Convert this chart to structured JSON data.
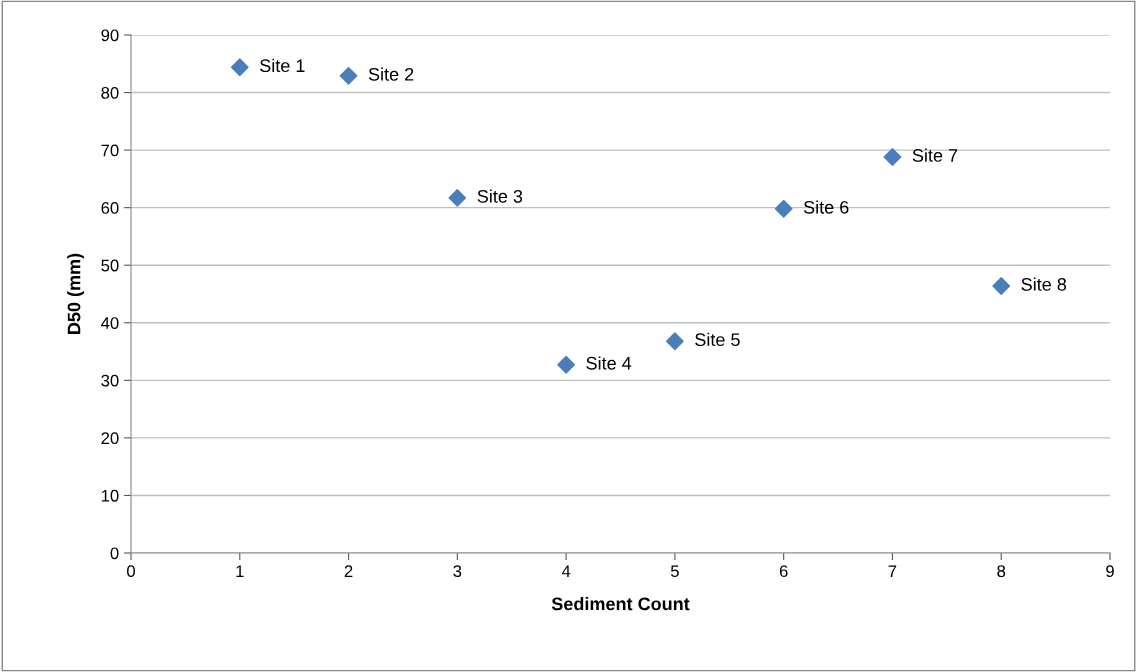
{
  "chart_data": {
    "type": "scatter",
    "xlabel": "Sediment Count",
    "ylabel": "D50 (mm)",
    "x": [
      1,
      2,
      3,
      4,
      5,
      6,
      7,
      8
    ],
    "series": [
      {
        "color": "#4a7ebb",
        "values": [
          84.4,
          82.9,
          61.7,
          32.7,
          36.8,
          59.8,
          68.8,
          46.4
        ]
      }
    ],
    "marker": "diamond",
    "grid": "y",
    "xlim": [
      0,
      9
    ],
    "xticks": [
      0,
      1,
      2,
      3,
      4,
      5,
      6,
      7,
      8,
      9
    ],
    "ylim": [
      0,
      90
    ],
    "yticks": [
      0,
      10,
      20,
      30,
      40,
      50,
      60,
      70,
      80,
      90
    ],
    "annotations": [
      {
        "text": "Site 1",
        "x": 1,
        "y": 84.4
      },
      {
        "text": "Site 2",
        "x": 2,
        "y": 82.9
      },
      {
        "text": "Site 3",
        "x": 3,
        "y": 61.7
      },
      {
        "text": "Site 4",
        "x": 4,
        "y": 32.7
      },
      {
        "text": "Site 5",
        "x": 5,
        "y": 36.8
      },
      {
        "text": "Site 6",
        "x": 6,
        "y": 59.8
      },
      {
        "text": "Site 7",
        "x": 7,
        "y": 68.8
      },
      {
        "text": "Site 8",
        "x": 8,
        "y": 46.4
      }
    ]
  }
}
